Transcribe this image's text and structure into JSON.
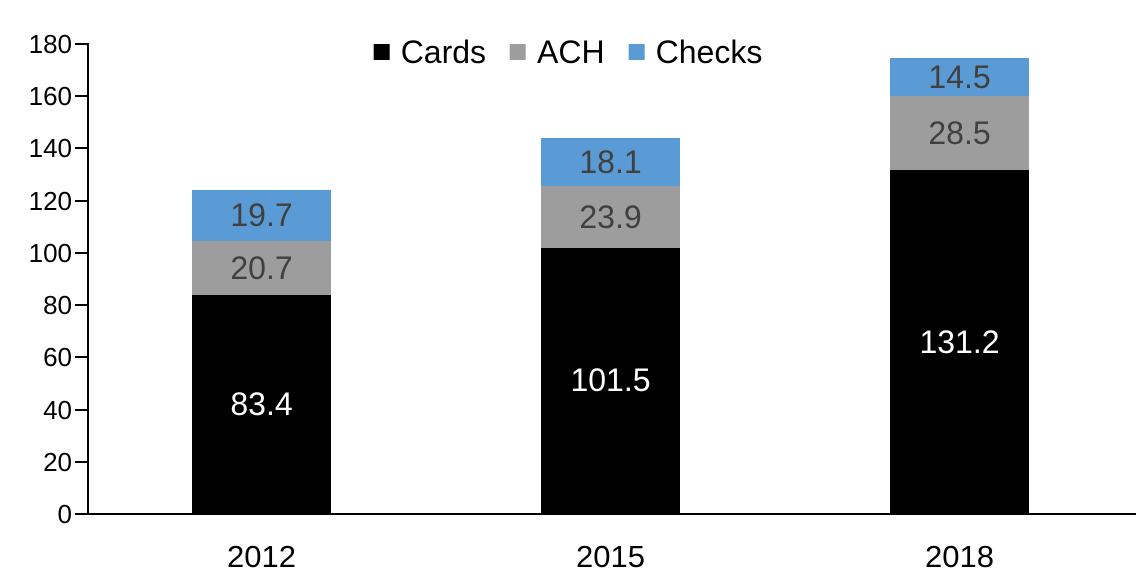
{
  "chart_data": {
    "type": "bar",
    "stacked": true,
    "title": "",
    "categories": [
      "2012",
      "2015",
      "2018"
    ],
    "series": [
      {
        "name": "Cards",
        "color": "#000000",
        "label_color": "#FFFFFF",
        "values": [
          83.4,
          101.5,
          131.2
        ]
      },
      {
        "name": "ACH",
        "color": "#9D9D9D",
        "label_color": "#404040",
        "values": [
          20.7,
          23.9,
          28.5
        ]
      },
      {
        "name": "Checks",
        "color": "#5B9BD5",
        "label_color": "#404040",
        "values": [
          19.7,
          18.1,
          14.5
        ]
      }
    ],
    "ylim": [
      0,
      180
    ],
    "ytick_step": 20,
    "grid": false,
    "legend_position": "top",
    "axis_color": "#000000",
    "xlabel": "",
    "ylabel": ""
  }
}
